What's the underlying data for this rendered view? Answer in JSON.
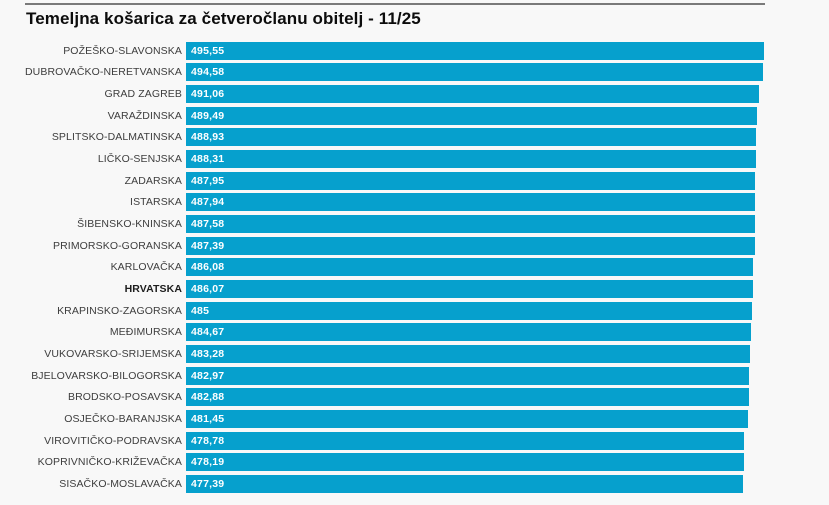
{
  "title": "Temeljna košarica za četveročlanu obitelj - 11/25",
  "colors": {
    "bar": "#06a0cd",
    "background": "#f8f8f8",
    "top_rule": "#7a7a7a",
    "value_text": "#ffffff",
    "label_text": "#3d3d3d",
    "title_text": "#0c0c0c"
  },
  "chart_data": {
    "type": "bar",
    "orientation": "horizontal",
    "title": "Temeljna košarica za četveročlanu obitelj - 11/25",
    "xlabel": "",
    "ylabel": "",
    "xlim": [
      0,
      495.55
    ],
    "grid": false,
    "legend": false,
    "emphasized_category": "HRVATSKA",
    "categories": [
      "POŽEŠKO-SLAVONSKA",
      "DUBROVAČKO-NERETVANSKA",
      "GRAD ZAGREB",
      "VARAŽDINSKA",
      "SPLITSKO-DALMATINSKA",
      "LIČKO-SENJSKA",
      "ZADARSKA",
      "ISTARSKA",
      "ŠIBENSKO-KNINSKA",
      "PRIMORSKO-GORANSKA",
      "KARLOVAČKA",
      "HRVATSKA",
      "KRAPINSKO-ZAGORSKA",
      "MEĐIMURSKA",
      "VUKOVARSKO-SRIJEMSKA",
      "BJELOVARSKO-BILOGORSKA",
      "BRODSKO-POSAVSKA",
      "OSJEČKO-BARANJSKA",
      "VIROVITIČKO-PODRAVSKA",
      "KOPRIVNIČKO-KRIŽEVAČKA",
      "SISAČKO-MOSLAVAČKA"
    ],
    "values": [
      495.55,
      494.58,
      491.06,
      489.49,
      488.93,
      488.31,
      487.95,
      487.94,
      487.58,
      487.39,
      486.08,
      486.07,
      485,
      484.67,
      483.28,
      482.97,
      482.88,
      481.45,
      478.78,
      478.19,
      477.39
    ],
    "value_labels": [
      "495,55",
      "494,58",
      "491,06",
      "489,49",
      "488,93",
      "488,31",
      "487,95",
      "487,94",
      "487,58",
      "487,39",
      "486,08",
      "486,07",
      "485",
      "484,67",
      "483,28",
      "482,97",
      "482,88",
      "481,45",
      "478,78",
      "478,19",
      "477,39"
    ]
  }
}
